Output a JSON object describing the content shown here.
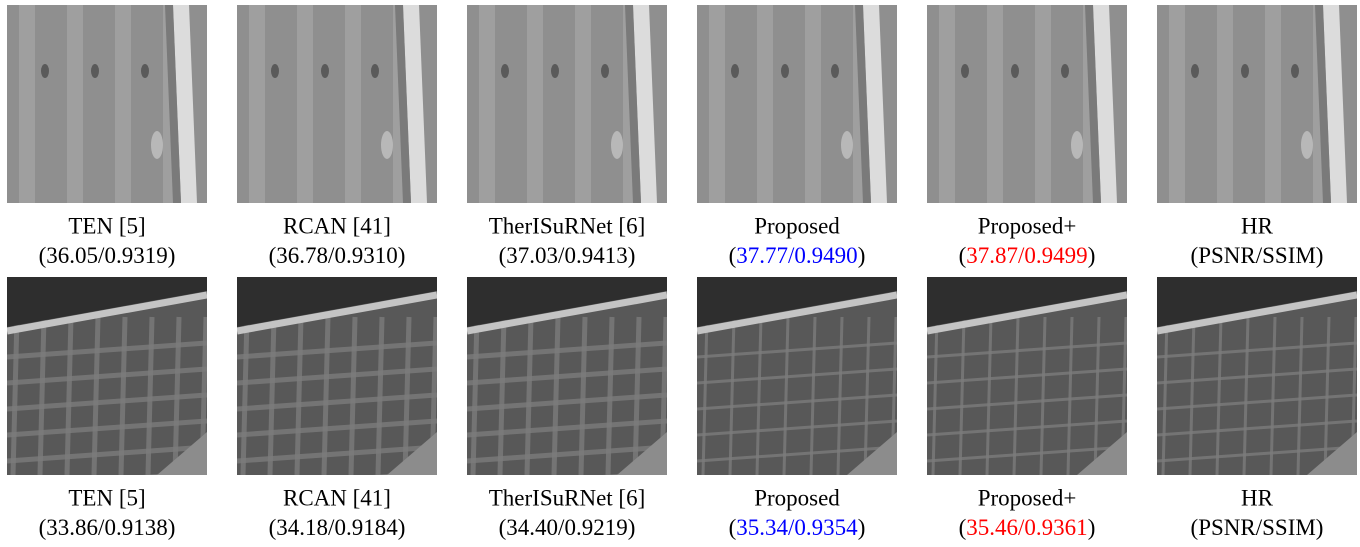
{
  "rows": [
    {
      "panels": [
        {
          "method": "TEN [5]",
          "metrics": [
            {
              "text": "(36.05/0.9319)"
            }
          ]
        },
        {
          "method": "RCAN [41]",
          "metrics": [
            {
              "text": "(36.78/0.9310)"
            }
          ]
        },
        {
          "method": "TherISuRNet [6]",
          "metrics": [
            {
              "text": "(37.03/0.9413)"
            }
          ]
        },
        {
          "method": "Proposed",
          "metrics": [
            {
              "text": "("
            },
            {
              "text": "37.77/0.9490",
              "color": "#0000ff"
            },
            {
              "text": ")"
            }
          ]
        },
        {
          "method": "Proposed+",
          "metrics": [
            {
              "text": "("
            },
            {
              "text": "37.87/0.9499",
              "color": "#ff0000"
            },
            {
              "text": ")"
            }
          ]
        },
        {
          "method": "HR",
          "metrics": [
            {
              "text": "(PSNR/SSIM)"
            }
          ]
        }
      ]
    },
    {
      "panels": [
        {
          "method": "TEN [5]",
          "metrics": [
            {
              "text": "(33.86/0.9138)"
            }
          ]
        },
        {
          "method": "RCAN [41]",
          "metrics": [
            {
              "text": "(34.18/0.9184)"
            }
          ]
        },
        {
          "method": "TherISuRNet [6]",
          "metrics": [
            {
              "text": "(34.40/0.9219)"
            }
          ]
        },
        {
          "method": "Proposed",
          "metrics": [
            {
              "text": "("
            },
            {
              "text": "35.34/0.9354",
              "color": "#0000ff"
            },
            {
              "text": ")"
            }
          ]
        },
        {
          "method": "Proposed+",
          "metrics": [
            {
              "text": "("
            },
            {
              "text": "35.46/0.9361",
              "color": "#ff0000"
            },
            {
              "text": ")"
            }
          ]
        },
        {
          "method": "HR",
          "metrics": [
            {
              "text": "(PSNR/SSIM)"
            }
          ]
        }
      ]
    }
  ]
}
